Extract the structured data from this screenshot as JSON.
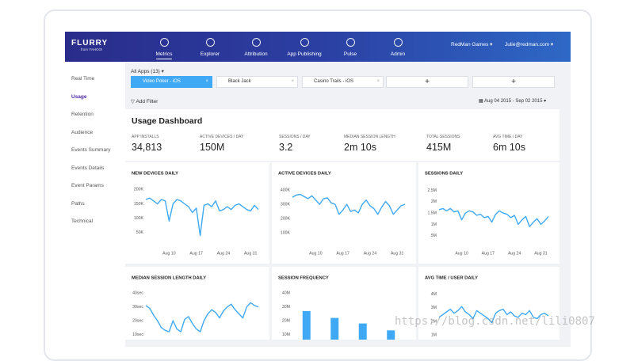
{
  "header": {
    "logo": "FLURRY",
    "logo_sub": "from YAHOO!",
    "nav": [
      "Metrics",
      "Explorer",
      "Attribution",
      "App Publishing",
      "Pulse",
      "Admin"
    ],
    "account": "RedMan Games",
    "user": "Julie@redman.com"
  },
  "sidebar": {
    "items": [
      "Real Time",
      "Usage",
      "Retention",
      "Audience",
      "Events Summary",
      "Events Details",
      "Event Params",
      "Paths",
      "Technical"
    ],
    "active": "Usage"
  },
  "filters": {
    "app_selector": "All Apps (13)",
    "tabs": [
      "Video Poker - iOS",
      "Black Jack",
      "Casino Trails - iOS"
    ],
    "add_buttons": [
      "+",
      "+"
    ],
    "add_filter": "Add Filter",
    "date_range": "Aug 04 2015 - Sep 02 2015"
  },
  "dashboard": {
    "title": "Usage Dashboard",
    "kpis": [
      {
        "label": "APP INSTALLS",
        "value": "34,813"
      },
      {
        "label": "ACTIVE DEVICES / DAY",
        "value": "150M"
      },
      {
        "label": "SESSIONS / DAY",
        "value": "3.2"
      },
      {
        "label": "MEDIAN SESSION LENGTH",
        "value": "2m 10s"
      },
      {
        "label": "TOTAL SESSIONS",
        "value": "415M"
      },
      {
        "label": "AVG TIME / DAY",
        "value": "6m 10s"
      }
    ],
    "charts": [
      {
        "type": "line",
        "title": "NEW DEVICES DAILY",
        "color": "#3fa9f5",
        "categories": [
          null,
          null,
          null,
          null,
          null,
          null,
          "Aug 10",
          null,
          null,
          null,
          null,
          null,
          null,
          "Aug 17",
          null,
          null,
          null,
          null,
          null,
          null,
          "Aug 24",
          null,
          null,
          null,
          null,
          null,
          null,
          "Aug 31",
          null,
          null
        ],
        "values": [
          165000,
          170000,
          160000,
          150000,
          165000,
          160000,
          90000,
          150000,
          165000,
          160000,
          150000,
          140000,
          120000,
          135000,
          40000,
          145000,
          150000,
          140000,
          160000,
          125000,
          130000,
          140000,
          130000,
          145000,
          150000,
          140000,
          130000,
          125000,
          145000,
          130000
        ],
        "ylim": [
          0,
          220000
        ],
        "yticks": [
          {
            "value": 200000,
            "label": "200K"
          },
          {
            "value": 150000,
            "label": "150K"
          },
          {
            "value": 100000,
            "label": "100K"
          },
          {
            "value": 50000,
            "label": "50K"
          }
        ]
      },
      {
        "type": "line",
        "title": "ACTIVE DEVICES DAILY",
        "color": "#3fa9f5",
        "categories": [
          null,
          null,
          null,
          null,
          null,
          null,
          "Aug 10",
          null,
          null,
          null,
          null,
          null,
          null,
          "Aug 17",
          null,
          null,
          null,
          null,
          null,
          null,
          "Aug 24",
          null,
          null,
          null,
          null,
          null,
          null,
          "Aug 31",
          null,
          null
        ],
        "values": [
          350000,
          365000,
          370000,
          355000,
          340000,
          360000,
          330000,
          300000,
          340000,
          345000,
          310000,
          300000,
          230000,
          260000,
          300000,
          250000,
          260000,
          240000,
          300000,
          330000,
          290000,
          270000,
          230000,
          280000,
          320000,
          290000,
          230000,
          260000,
          290000,
          300000
        ],
        "ylim": [
          0,
          445000
        ],
        "yticks": [
          {
            "value": 400000,
            "label": "400K"
          },
          {
            "value": 300000,
            "label": "300K"
          },
          {
            "value": 200000,
            "label": "200K"
          },
          {
            "value": 100000,
            "label": "100K"
          }
        ]
      },
      {
        "type": "line",
        "title": "SESSIONS DAILY",
        "color": "#3fa9f5",
        "categories": [
          null,
          null,
          null,
          null,
          null,
          null,
          "Aug 10",
          null,
          null,
          null,
          null,
          null,
          null,
          "Aug 17",
          null,
          null,
          null,
          null,
          null,
          null,
          "Aug 24",
          null,
          null,
          null,
          null,
          null,
          null,
          "Aug 31",
          null,
          null
        ],
        "values": [
          1650000,
          1700000,
          1600000,
          1700000,
          1550000,
          1600000,
          1200000,
          1500000,
          1600000,
          1550000,
          1400000,
          1450000,
          1300000,
          1350000,
          1100000,
          1450000,
          1600000,
          1500000,
          1450000,
          1300000,
          1400000,
          1000000,
          1200000,
          1350000,
          900000,
          1100000,
          1250000,
          1000000,
          1150000,
          1350000
        ],
        "ylim": [
          0,
          2800000
        ],
        "yticks": [
          {
            "value": 2500000,
            "label": "2.5M"
          },
          {
            "value": 2000000,
            "label": "2M"
          },
          {
            "value": 1500000,
            "label": "1.5M"
          },
          {
            "value": 1000000,
            "label": "1M"
          },
          {
            "value": 500000,
            "label": ".5M"
          }
        ]
      },
      {
        "type": "line",
        "title": "MEDIAN SESSION LENGTH DAILY",
        "color": "#3fa9f5",
        "categories": [
          null,
          null,
          null,
          null,
          null,
          null,
          null,
          null,
          null,
          null,
          null,
          null,
          null,
          null,
          null,
          null,
          null,
          null,
          null,
          null,
          null,
          null,
          null,
          null,
          null,
          null,
          null,
          null,
          null,
          null
        ],
        "values": [
          31,
          29,
          24,
          20,
          15,
          13,
          12,
          20,
          14,
          12,
          21,
          23,
          18,
          14,
          12,
          20,
          25,
          28,
          26,
          22,
          27,
          30,
          32,
          28,
          25,
          22,
          30,
          33,
          31,
          30
        ],
        "ylim": [
          0,
          43
        ],
        "yticks": [
          {
            "value": 40,
            "label": "40sec"
          },
          {
            "value": 30,
            "label": "30sec"
          },
          {
            "value": 20,
            "label": "20sec"
          },
          {
            "value": 10,
            "label": "10sec"
          }
        ]
      },
      {
        "type": "bar",
        "title": "SESSION FREQUENCY",
        "color": "#3fa9f5",
        "categories": [
          null,
          null,
          null,
          null
        ],
        "values": [
          27000000,
          22000000,
          18000000,
          13000000
        ],
        "ylim": [
          0,
          43000000
        ],
        "yticks": [
          {
            "value": 40000000,
            "label": "40M"
          },
          {
            "value": 30000000,
            "label": "30M"
          },
          {
            "value": 20000000,
            "label": "20M"
          },
          {
            "value": 10000000,
            "label": "10M"
          }
        ]
      },
      {
        "type": "line",
        "title": "AVG TIME / USER DAILY",
        "color": "#3fa9f5",
        "categories": [
          null,
          null,
          null,
          null,
          null,
          null,
          null,
          null,
          null,
          null,
          null,
          null,
          null,
          null,
          null,
          null,
          null,
          null,
          null,
          null,
          null,
          null,
          null,
          null,
          null,
          null,
          null,
          null,
          null,
          null
        ],
        "values": [
          2.3,
          2.5,
          2.7,
          2.9,
          2.6,
          2.8,
          3.1,
          2.7,
          2.5,
          2.2,
          2.8,
          2.6,
          2.4,
          2.2,
          1.9,
          2.6,
          2.8,
          2.9,
          2.5,
          2.7,
          2.4,
          2.3,
          2.6,
          2.5,
          2.8,
          2.3,
          2.2,
          2.5,
          2.6,
          2.4
        ],
        "ylim": [
          0,
          4.4
        ],
        "yticks": [
          {
            "value": 4,
            "label": "4M"
          },
          {
            "value": 3,
            "label": "3M"
          },
          {
            "value": 2,
            "label": "2M"
          },
          {
            "value": 1,
            "label": "1M"
          }
        ]
      }
    ]
  },
  "watermark": "https://blog.csdn.net/lili0807"
}
